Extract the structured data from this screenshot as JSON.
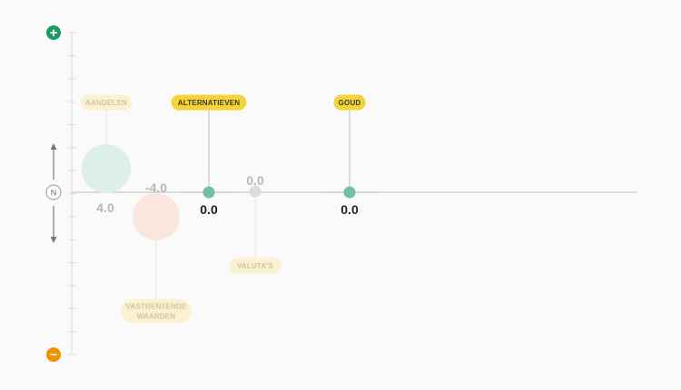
{
  "chart_data": {
    "type": "scatter",
    "title": "",
    "y_axis": {
      "top_symbol": "+",
      "middle_symbol": "N",
      "bottom_symbol": "−",
      "colors": {
        "plus": "#1a9a5e",
        "minus": "#f39200"
      }
    },
    "series": [
      {
        "label": "AANDELEN",
        "display_value": "4.0",
        "value": 4.0,
        "highlighted": false,
        "bubble_color": "#dcefe9",
        "tag_color": "#fbf0cf",
        "tag_text_color": "#cfc8a4",
        "value_color": "#b8b8b8"
      },
      {
        "label": "VASTRENTENDE WAARDEN",
        "label_lines": [
          "VASTRENTENDE",
          "WAARDEN"
        ],
        "display_value": "-4.0",
        "value": -4.0,
        "highlighted": false,
        "bubble_color": "#fbe6de",
        "tag_color": "#fbf0cf",
        "tag_text_color": "#cfc8a4",
        "value_color": "#b8b8b8"
      },
      {
        "label": "ALTERNATIEVEN",
        "display_value": "0.0",
        "value": 0.0,
        "highlighted": true,
        "bubble_color": "#72bfa1",
        "tag_color": "#f5d43a",
        "tag_text_color": "#3b3b1e",
        "value_color": "#1f1f1f"
      },
      {
        "label": "VALUTA'S",
        "display_value": "0.0",
        "value": 0.0,
        "highlighted": false,
        "bubble_color": "#dcdcdc",
        "tag_color": "#fbf0cf",
        "tag_text_color": "#cfc8a4",
        "value_color": "#b8b8b8"
      },
      {
        "label": "GOUD",
        "display_value": "0.0",
        "value": 0.0,
        "highlighted": true,
        "bubble_color": "#72bfa1",
        "tag_color": "#f5d43a",
        "tag_text_color": "#3b3b1e",
        "value_color": "#1f1f1f"
      }
    ],
    "grid": false,
    "legend": "none"
  }
}
